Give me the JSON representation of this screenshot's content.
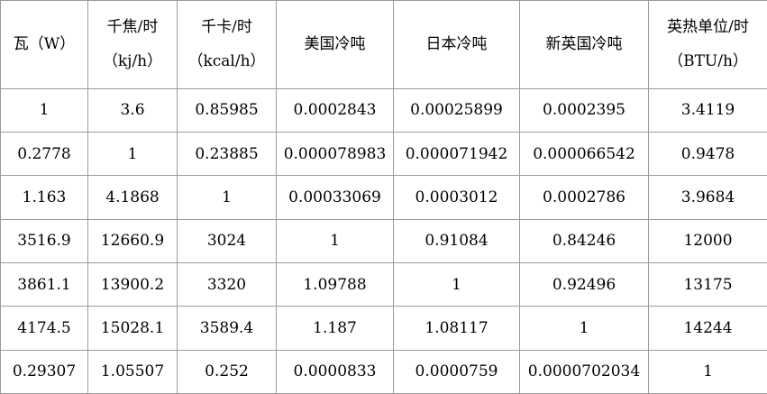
{
  "table": {
    "header": [
      [
        "瓦（W）"
      ],
      [
        "千焦/时",
        "（kj/h）"
      ],
      [
        "千卡/时",
        "（kcal/h）"
      ],
      [
        "美国冷吨"
      ],
      [
        "日本冷吨"
      ],
      [
        "新英国冷吨"
      ],
      [
        "英热单位/时",
        "（BTU/h）"
      ]
    ],
    "rows": [
      [
        "1",
        "3.6",
        "0.85985",
        "0.0002843",
        "0.00025899",
        "0.0002395",
        "3.4119"
      ],
      [
        "0.2778",
        "1",
        "0.23885",
        "0.000078983",
        "0.000071942",
        "0.000066542",
        "0.9478"
      ],
      [
        "1.163",
        "4.1868",
        "1",
        "0.00033069",
        "0.0003012",
        "0.0002786",
        "3.9684"
      ],
      [
        "3516.9",
        "12660.9",
        "3024",
        "1",
        "0.91084",
        "0.84246",
        "12000"
      ],
      [
        "3861.1",
        "13900.2",
        "3320",
        "1.09788",
        "1",
        "0.92496",
        "13175"
      ],
      [
        "4174.5",
        "15028.1",
        "3589.4",
        "1.187",
        "1.08117",
        "1",
        "14244"
      ],
      [
        "0.29307",
        "1.05507",
        "0.252",
        "0.0000833",
        "0.0000759",
        "0.0000702034",
        "1"
      ]
    ]
  }
}
